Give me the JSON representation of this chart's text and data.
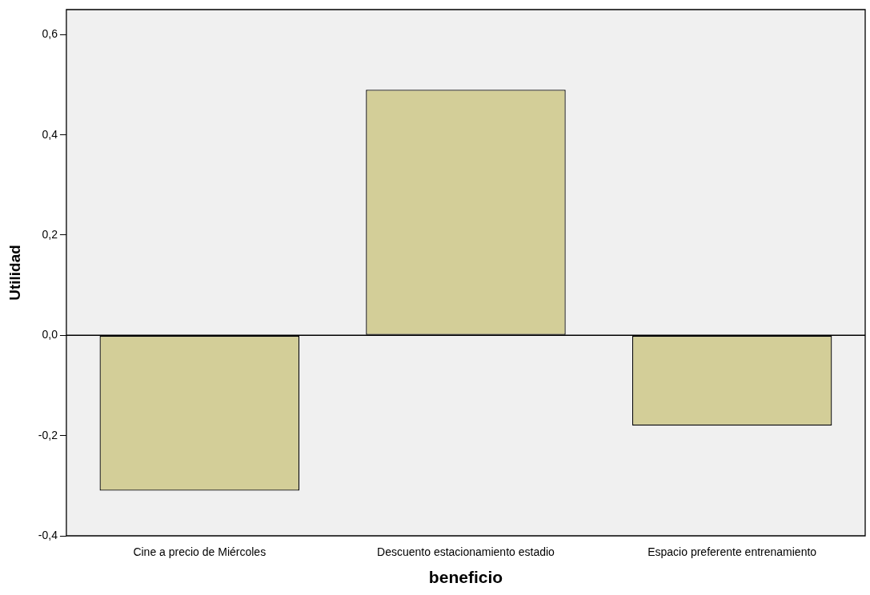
{
  "chart_data": {
    "type": "bar",
    "xlabel": "beneficio",
    "ylabel": "Utilidad",
    "categories": [
      "Cine a precio de Miércoles",
      "Descuento estacionamiento estadio",
      "Espacio preferente entrenamiento"
    ],
    "values": [
      -0.31,
      0.49,
      -0.18
    ],
    "color": "#d3ce98",
    "ylim": [
      -0.4,
      0.65
    ],
    "yticks": [
      {
        "value": -0.4,
        "label": "-0,4"
      },
      {
        "value": -0.2,
        "label": "-0,2"
      },
      {
        "value": 0,
        "label": "0,0"
      },
      {
        "value": 0.2,
        "label": "0,2"
      },
      {
        "value": 0.4,
        "label": "0,4"
      },
      {
        "value": 0.6,
        "label": "0,6"
      }
    ],
    "ref_lines": [
      {
        "axis": "y",
        "value": 0,
        "color": "#000000"
      }
    ],
    "grid": false,
    "legend": false
  }
}
